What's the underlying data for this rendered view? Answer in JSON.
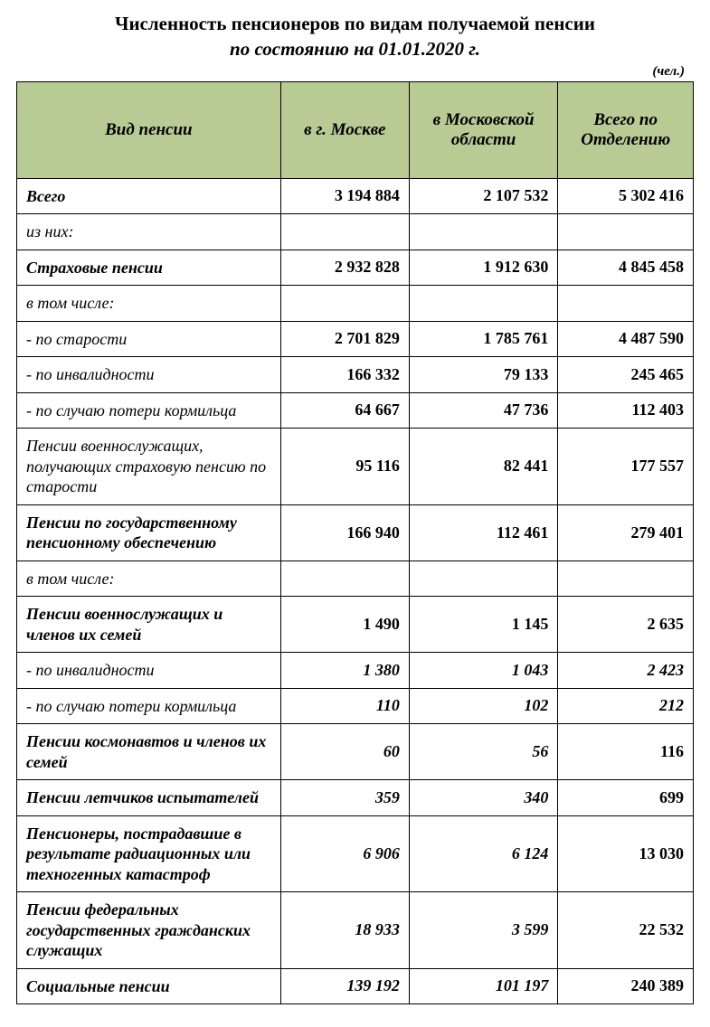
{
  "title_line1": "Численность пенсионеров по видам получаемой пенсии",
  "title_line2": "по состоянию на 01.01.2020 г.",
  "unit_label": "(чел.)",
  "table": {
    "header_bg": "#b9cb95",
    "border_color": "#000000",
    "columns": [
      "Вид пенсии",
      "в г. Москве",
      "в Московской области",
      "Всего по Отделению"
    ],
    "rows": [
      {
        "label": "Всего",
        "moscow": "3 194 884",
        "oblast": "2 107 532",
        "total": "5 302 416",
        "label_bold": true,
        "num_bold": true,
        "num_italic": false
      },
      {
        "label": "из них:",
        "moscow": "",
        "oblast": "",
        "total": "",
        "label_bold": false,
        "num_bold": false,
        "num_italic": false
      },
      {
        "label": "Страховые пенсии",
        "moscow": "2 932 828",
        "oblast": "1 912 630",
        "total": "4 845 458",
        "label_bold": true,
        "num_bold": true,
        "num_italic": false
      },
      {
        "label": "в том числе:",
        "moscow": "",
        "oblast": "",
        "total": "",
        "label_bold": false,
        "num_bold": false,
        "num_italic": false
      },
      {
        "label": "- по старости",
        "moscow": "2 701 829",
        "oblast": "1 785 761",
        "total": "4 487 590",
        "label_bold": false,
        "num_bold": true,
        "num_italic": false
      },
      {
        "label": "- по инвалидности",
        "moscow": "166 332",
        "oblast": "79 133",
        "total": "245 465",
        "label_bold": false,
        "num_bold": true,
        "num_italic": false
      },
      {
        "label": "- по случаю потери кормильца",
        "moscow": "64 667",
        "oblast": "47 736",
        "total": "112 403",
        "label_bold": false,
        "num_bold": true,
        "num_italic": false
      },
      {
        "label": "Пенсии военнослужащих, получающих страховую пенсию по старости",
        "moscow": "95 116",
        "oblast": "82 441",
        "total": "177 557",
        "label_bold": false,
        "num_bold": true,
        "num_italic": false
      },
      {
        "label": "Пенсии по государственному пенсионному обеспечению",
        "moscow": "166 940",
        "oblast": "112 461",
        "total": "279 401",
        "label_bold": true,
        "num_bold": true,
        "num_italic": false
      },
      {
        "label": "в том числе:",
        "moscow": "",
        "oblast": "",
        "total": "",
        "label_bold": false,
        "num_bold": false,
        "num_italic": false
      },
      {
        "label": "Пенсии военнослужащих и членов их семей",
        "moscow": "1 490",
        "oblast": "1 145",
        "total": "2 635",
        "label_bold": true,
        "num_bold": true,
        "num_italic": false
      },
      {
        "label": "- по инвалидности",
        "moscow": "1 380",
        "oblast": "1 043",
        "total": "2 423",
        "label_bold": false,
        "num_bold": true,
        "num_italic": true
      },
      {
        "label": "- по случаю потери кормильца",
        "moscow": "110",
        "oblast": "102",
        "total": "212",
        "label_bold": false,
        "num_bold": true,
        "num_italic": true
      },
      {
        "label": "Пенсии космонавтов и членов их семей",
        "moscow": "60",
        "oblast": "56",
        "total": "116",
        "label_bold": true,
        "num_bold": true,
        "num_italic": true,
        "total_italic": false
      },
      {
        "label": "Пенсии летчиков испытателей",
        "moscow": "359",
        "oblast": "340",
        "total": "699",
        "label_bold": true,
        "num_bold": true,
        "num_italic": true,
        "total_italic": false
      },
      {
        "label": "Пенсионеры, пострадавшие в результате радиационных или техногенных катастроф",
        "moscow": "6 906",
        "oblast": "6 124",
        "total": "13 030",
        "label_bold": true,
        "num_bold": true,
        "num_italic": true,
        "total_italic": false
      },
      {
        "label": "Пенсии федеральных государственных гражданских служащих",
        "moscow": "18 933",
        "oblast": "3 599",
        "total": "22 532",
        "label_bold": true,
        "num_bold": true,
        "num_italic": true,
        "total_italic": false
      },
      {
        "label": "Социальные пенсии",
        "moscow": "139 192",
        "oblast": "101 197",
        "total": "240 389",
        "label_bold": true,
        "num_bold": true,
        "num_italic": true,
        "total_italic": false
      }
    ]
  }
}
